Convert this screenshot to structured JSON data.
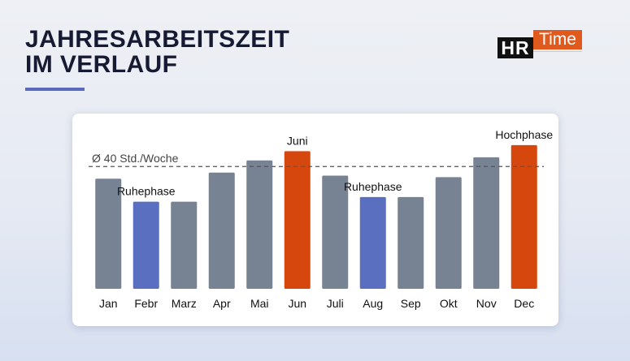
{
  "title": {
    "line1": "JAHRESARBEITSZEIT",
    "line2": "IM VERLAUF"
  },
  "logo": {
    "part1": "HR",
    "part2": "Time"
  },
  "colors": {
    "neutral": "#778292",
    "ruhephase": "#5a6fbf",
    "hochphase": "#d5470c",
    "reference_line": "#555555"
  },
  "chart_data": {
    "type": "bar",
    "categories": [
      "Jan",
      "Febr",
      "Marz",
      "Apr",
      "Mai",
      "Jun",
      "Juli",
      "Aug",
      "Sep",
      "Okt",
      "Nov",
      "Dec"
    ],
    "values": [
      36,
      28.5,
      28.5,
      38,
      42,
      45,
      37,
      30,
      30,
      36.5,
      43,
      47
    ],
    "highlight": [
      "neutral",
      "ruhephase",
      "neutral",
      "neutral",
      "neutral",
      "hochphase",
      "neutral",
      "ruhephase",
      "neutral",
      "neutral",
      "neutral",
      "hochphase"
    ],
    "reference_line": {
      "value": 40,
      "label": "Ø 40 Std./Woche"
    },
    "ylim": [
      0,
      52
    ],
    "grid": false,
    "annotations": [
      {
        "category": "Febr",
        "text": "Ruhephase"
      },
      {
        "category": "Jun",
        "text": "Juni"
      },
      {
        "category": "Aug",
        "text": "Ruhephase"
      },
      {
        "category": "Dec",
        "text": "Hochphase"
      }
    ]
  }
}
